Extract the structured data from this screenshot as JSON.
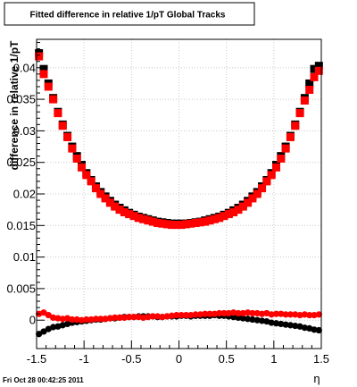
{
  "chart_data": {
    "type": "scatter",
    "title": "Fitted difference in relative 1/pT  Global Tracks",
    "xlabel": "η",
    "ylabel": "difference in relative 1/pT",
    "xlim": [
      -1.5,
      1.5
    ],
    "ylim": [
      -0.0045,
      0.0445
    ],
    "x_ticks": [
      {
        "value": -1.5,
        "label": "-1.5"
      },
      {
        "value": -1.0,
        "label": "-1"
      },
      {
        "value": -0.5,
        "label": "-0.5"
      },
      {
        "value": 0.0,
        "label": "0"
      },
      {
        "value": 0.5,
        "label": "0.5"
      },
      {
        "value": 1.0,
        "label": "1"
      },
      {
        "value": 1.5,
        "label": "1.5"
      }
    ],
    "y_ticks": [
      {
        "value": 0.0,
        "label": "0"
      },
      {
        "value": 0.005,
        "label": "0.005"
      },
      {
        "value": 0.01,
        "label": "0.01"
      },
      {
        "value": 0.015,
        "label": "0.015"
      },
      {
        "value": 0.02,
        "label": "0.02"
      },
      {
        "value": 0.025,
        "label": "0.025"
      },
      {
        "value": 0.03,
        "label": "0.03"
      },
      {
        "value": 0.035,
        "label": "0.035"
      },
      {
        "value": 0.04,
        "label": "0.04"
      }
    ],
    "grid": true,
    "timestamp": "Fri Oct 28 00:42:25 2011",
    "colors": {
      "series_1": "#000000",
      "series_2": "#ff0000",
      "grid": "#c8c8c8"
    },
    "x": [
      -1.475,
      -1.425,
      -1.375,
      -1.325,
      -1.275,
      -1.225,
      -1.175,
      -1.125,
      -1.075,
      -1.025,
      -0.975,
      -0.925,
      -0.875,
      -0.825,
      -0.775,
      -0.725,
      -0.675,
      -0.625,
      -0.575,
      -0.525,
      -0.475,
      -0.425,
      -0.375,
      -0.325,
      -0.275,
      -0.225,
      -0.175,
      -0.125,
      -0.075,
      -0.025,
      0.025,
      0.075,
      0.125,
      0.175,
      0.225,
      0.275,
      0.325,
      0.375,
      0.425,
      0.475,
      0.525,
      0.575,
      0.625,
      0.675,
      0.725,
      0.775,
      0.825,
      0.875,
      0.925,
      0.975,
      1.025,
      1.075,
      1.125,
      1.175,
      1.225,
      1.275,
      1.325,
      1.375,
      1.425,
      1.475
    ],
    "series": [
      {
        "marker": "square",
        "values": [
          0.0423,
          0.0398,
          0.0375,
          0.0352,
          0.033,
          0.031,
          0.0292,
          0.0275,
          0.026,
          0.0246,
          0.0233,
          0.0222,
          0.0212,
          0.0203,
          0.0196,
          0.0189,
          0.0183,
          0.0178,
          0.0174,
          0.017,
          0.0167,
          0.0164,
          0.0162,
          0.016,
          0.0158,
          0.0156,
          0.0155,
          0.0154,
          0.0153,
          0.0153,
          0.0153,
          0.0153,
          0.0154,
          0.0155,
          0.0156,
          0.0158,
          0.016,
          0.0162,
          0.0164,
          0.0167,
          0.017,
          0.0174,
          0.0178,
          0.0183,
          0.0189,
          0.0196,
          0.0203,
          0.0212,
          0.0222,
          0.0233,
          0.0246,
          0.026,
          0.0275,
          0.0292,
          0.031,
          0.033,
          0.0352,
          0.0375,
          0.0398,
          0.0403
        ]
      },
      {
        "marker": "square",
        "values": [
          0.0418,
          0.039,
          0.037,
          0.035,
          0.0328,
          0.0308,
          0.029,
          0.0272,
          0.0256,
          0.0242,
          0.023,
          0.022,
          0.0209,
          0.02,
          0.0193,
          0.0186,
          0.018,
          0.0175,
          0.0171,
          0.0168,
          0.0165,
          0.0162,
          0.016,
          0.0158,
          0.0156,
          0.0154,
          0.0153,
          0.0152,
          0.0151,
          0.0151,
          0.0151,
          0.0152,
          0.0153,
          0.0154,
          0.0155,
          0.0156,
          0.0158,
          0.016,
          0.0162,
          0.0165,
          0.0168,
          0.0171,
          0.0175,
          0.018,
          0.0186,
          0.0193,
          0.02,
          0.0209,
          0.022,
          0.023,
          0.0242,
          0.0256,
          0.0272,
          0.029,
          0.0308,
          0.0328,
          0.0348,
          0.0365,
          0.0385,
          0.0395
        ]
      },
      {
        "marker": "circle",
        "values": [
          -0.0022,
          -0.0018,
          -0.0014,
          -0.0011,
          -0.001,
          -0.0008,
          -0.0006,
          -0.0004,
          -0.0003,
          -0.0002,
          -0.0001,
          0.0,
          0.0001,
          0.0001,
          0.0002,
          0.0003,
          0.0003,
          0.0004,
          0.0005,
          0.0005,
          0.0005,
          0.0006,
          0.0006,
          0.0006,
          0.0006,
          0.0005,
          0.0005,
          0.0006,
          0.0006,
          0.0006,
          0.0007,
          0.0007,
          0.0006,
          0.0007,
          0.0007,
          0.0007,
          0.0007,
          0.0008,
          0.0007,
          0.0007,
          0.0006,
          0.0005,
          0.0004,
          0.0003,
          0.0002,
          0.0001,
          0.0,
          -0.0001,
          -0.0002,
          -0.0004,
          -0.0005,
          -0.0006,
          -0.0007,
          -0.0008,
          -0.0009,
          -0.001,
          -0.0012,
          -0.0013,
          -0.0015,
          -0.0016
        ]
      },
      {
        "marker": "circle",
        "values": [
          0.001,
          0.0012,
          0.0008,
          0.0004,
          0.0003,
          0.0002,
          0.0003,
          0.0001,
          0.0001,
          0.0,
          0.0001,
          0.0001,
          0.0002,
          0.0002,
          0.0002,
          0.0003,
          0.0004,
          0.0004,
          0.0004,
          0.0005,
          0.0005,
          0.0005,
          0.0004,
          0.0005,
          0.0006,
          0.0006,
          0.0005,
          0.0006,
          0.0007,
          0.0008,
          0.0008,
          0.0008,
          0.0008,
          0.0009,
          0.0009,
          0.001,
          0.001,
          0.001,
          0.0011,
          0.0011,
          0.0011,
          0.0012,
          0.0011,
          0.0011,
          0.0012,
          0.0011,
          0.0011,
          0.001,
          0.0011,
          0.0009,
          0.001,
          0.001,
          0.0009,
          0.0009,
          0.0009,
          0.0008,
          0.0009,
          0.0008,
          0.0008,
          0.0009
        ]
      }
    ]
  }
}
